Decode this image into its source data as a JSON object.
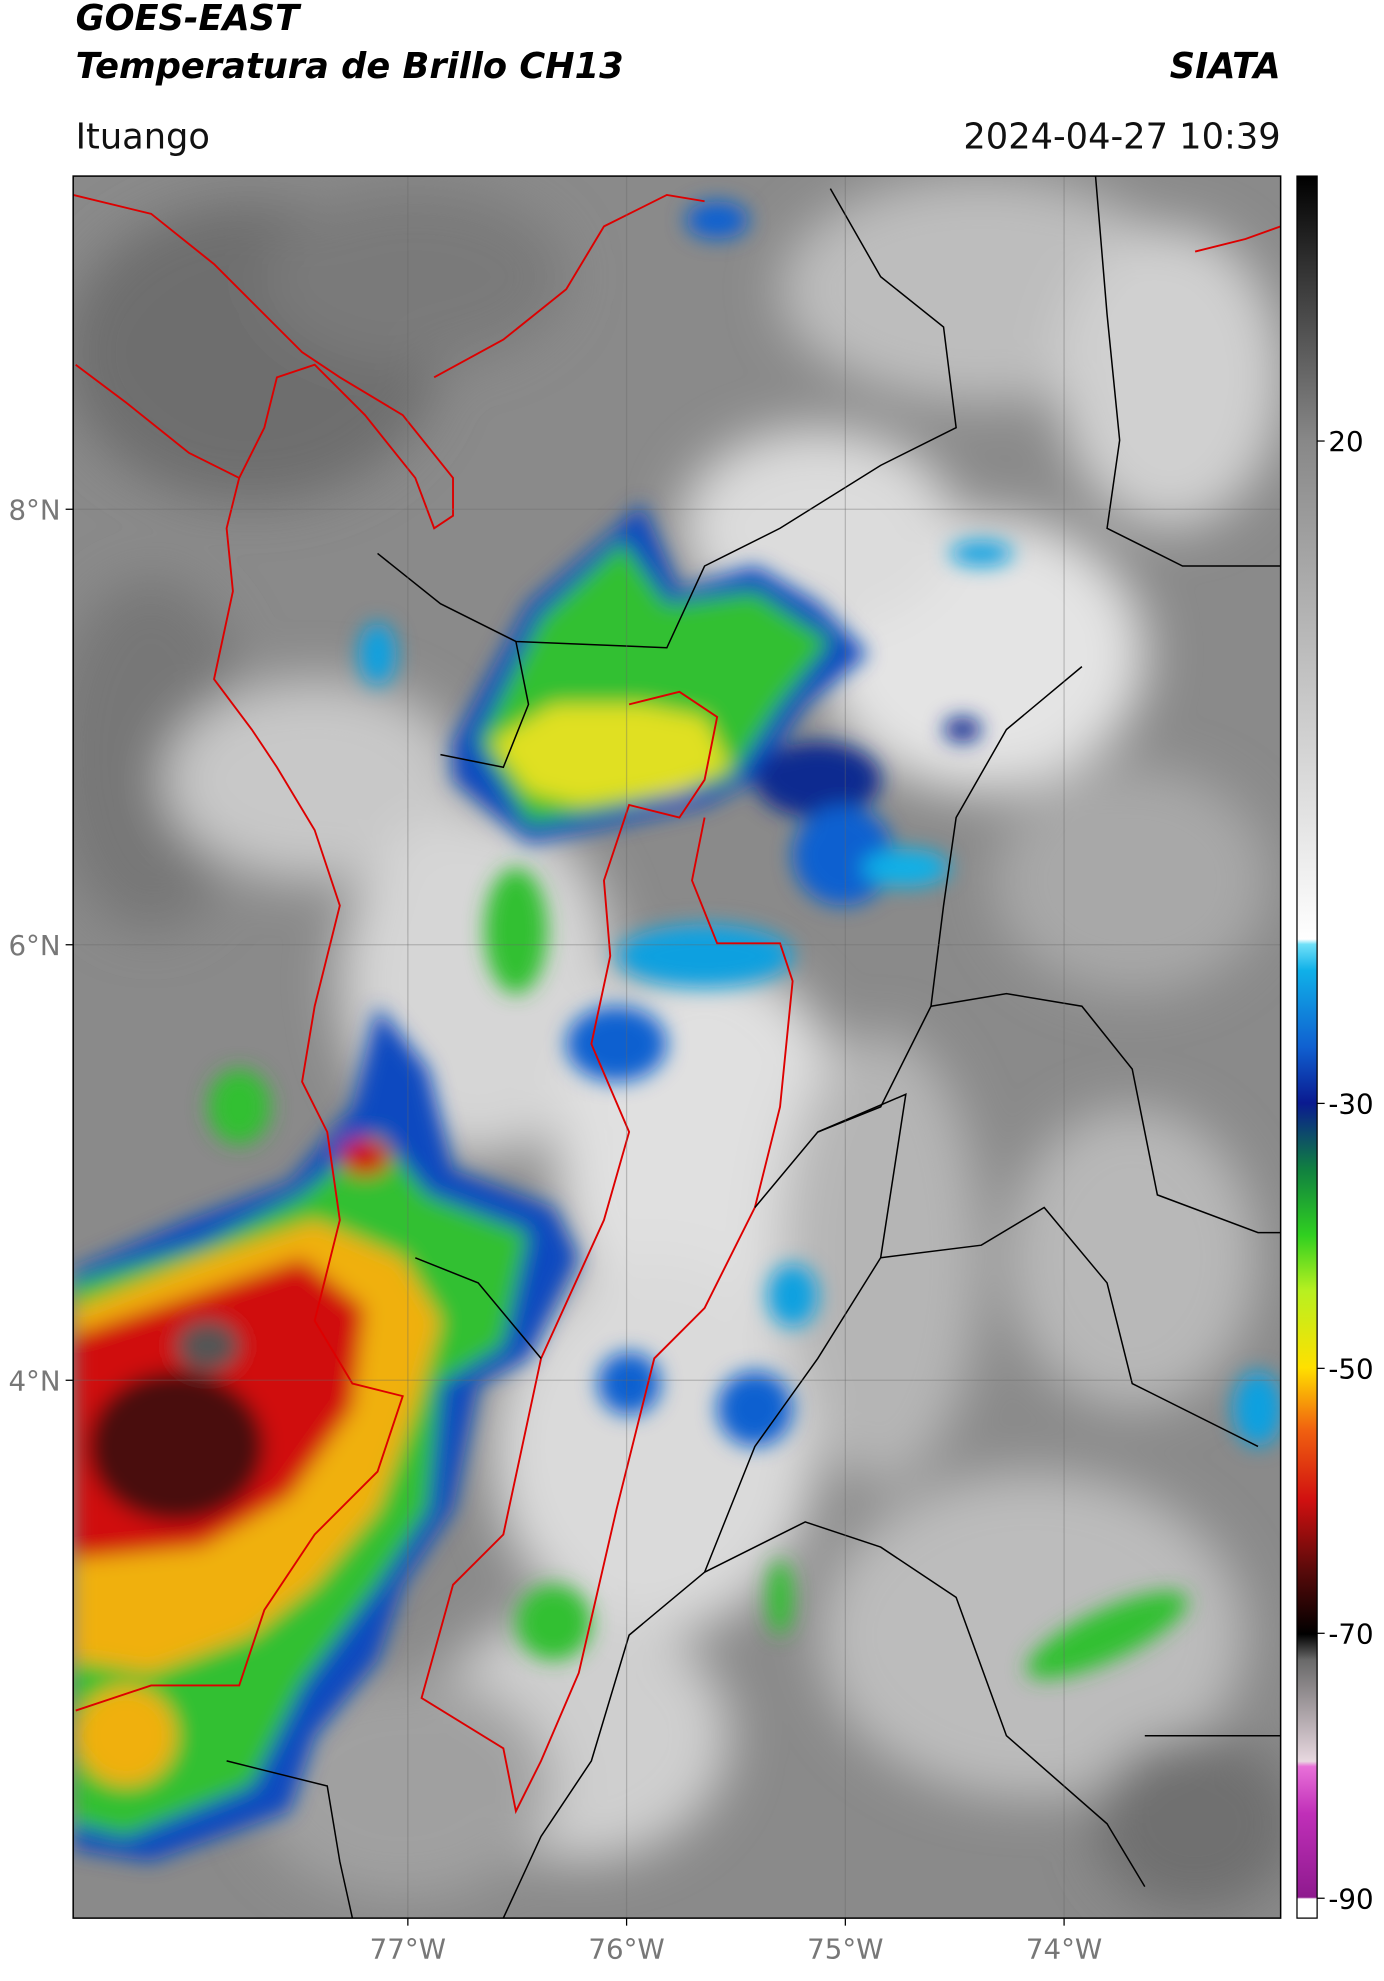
{
  "header": {
    "title": "GOES-EAST",
    "subtitle": "Temperatura de Brillo CH13",
    "source": "SIATA",
    "location": "Ituango",
    "datetime": "2024-04-27 10:39"
  },
  "map": {
    "lonlim": [
      -78.53,
      -73.01
    ],
    "latlim": [
      1.53,
      9.53
    ],
    "lon_ticks": [
      {
        "value": -77,
        "label": "77°W"
      },
      {
        "value": -76,
        "label": "76°W"
      },
      {
        "value": -75,
        "label": "75°W"
      },
      {
        "value": -74,
        "label": "74°W"
      }
    ],
    "lat_ticks": [
      {
        "value": 8,
        "label": "8°N"
      },
      {
        "value": 6,
        "label": "6°N"
      },
      {
        "value": 4,
        "label": "4°N"
      }
    ],
    "grid": true
  },
  "colorbar": {
    "range": [
      -91.5,
      40
    ],
    "ticks": [
      20,
      -30,
      -50,
      -70,
      -90
    ]
  }
}
